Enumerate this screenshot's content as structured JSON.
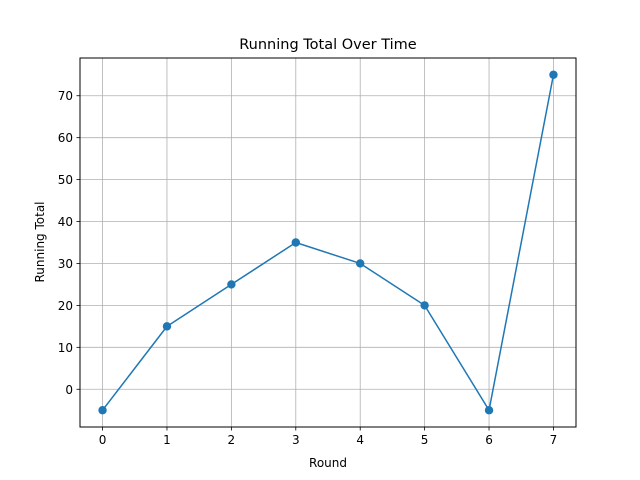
{
  "chart_data": {
    "type": "line",
    "title": "Running Total Over Time",
    "xlabel": "Round",
    "ylabel": "Running Total",
    "x": [
      0,
      1,
      2,
      3,
      4,
      5,
      6,
      7
    ],
    "series": [
      {
        "values": [
          -5,
          15,
          25,
          35,
          30,
          20,
          -5,
          75
        ]
      }
    ],
    "xlim": [
      -0.35,
      7.35
    ],
    "ylim": [
      -9,
      79
    ],
    "xticks": [
      0,
      1,
      2,
      3,
      4,
      5,
      6,
      7
    ],
    "yticks": [
      0,
      10,
      20,
      30,
      40,
      50,
      60,
      70
    ],
    "grid": true,
    "marker": "circle",
    "line_color": "#1f77b4",
    "grid_color": "#b0b0b0"
  }
}
